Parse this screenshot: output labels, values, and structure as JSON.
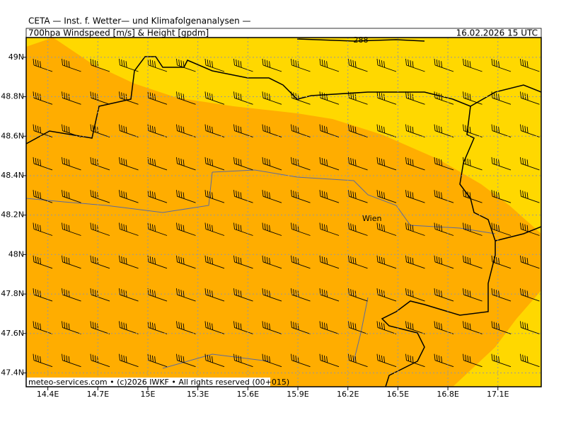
{
  "header": {
    "title": "CETA — Inst. f. Wetter— und Klimafolgenanalysen —",
    "subtitle": "700hpa Windspeed [m/s] & Height [gpdm]",
    "valid_time": "16.02.2026 15 UTC"
  },
  "map": {
    "xlim": [
      14.27,
      17.36
    ],
    "ylim": [
      47.33,
      49.1
    ],
    "xticks": [
      {
        "value": 14.4,
        "label": "14.4E"
      },
      {
        "value": 14.7,
        "label": "14.7E"
      },
      {
        "value": 15,
        "label": "15E"
      },
      {
        "value": 15.3,
        "label": "15.3E"
      },
      {
        "value": 15.6,
        "label": "15.6E"
      },
      {
        "value": 15.9,
        "label": "15.9E"
      },
      {
        "value": 16.2,
        "label": "16.2E"
      },
      {
        "value": 16.5,
        "label": "16.5E"
      },
      {
        "value": 16.8,
        "label": "16.8E"
      },
      {
        "value": 17.1,
        "label": "17.1E"
      }
    ],
    "yticks": [
      {
        "value": 47.4,
        "label": "47.4N"
      },
      {
        "value": 47.6,
        "label": "47.6N"
      },
      {
        "value": 47.8,
        "label": "47.8N"
      },
      {
        "value": 48,
        "label": "48N"
      },
      {
        "value": 48.2,
        "label": "48.2N"
      },
      {
        "value": 48.4,
        "label": "48.4N"
      },
      {
        "value": 48.6,
        "label": "48.6N"
      },
      {
        "value": 48.8,
        "label": "48.8N"
      },
      {
        "value": 49,
        "label": "49N"
      }
    ],
    "contour_label": "288",
    "city": "Wien"
  },
  "footer": "meteo-services.com • (c)2026 IWKF • All rights reserved (00+015)"
}
